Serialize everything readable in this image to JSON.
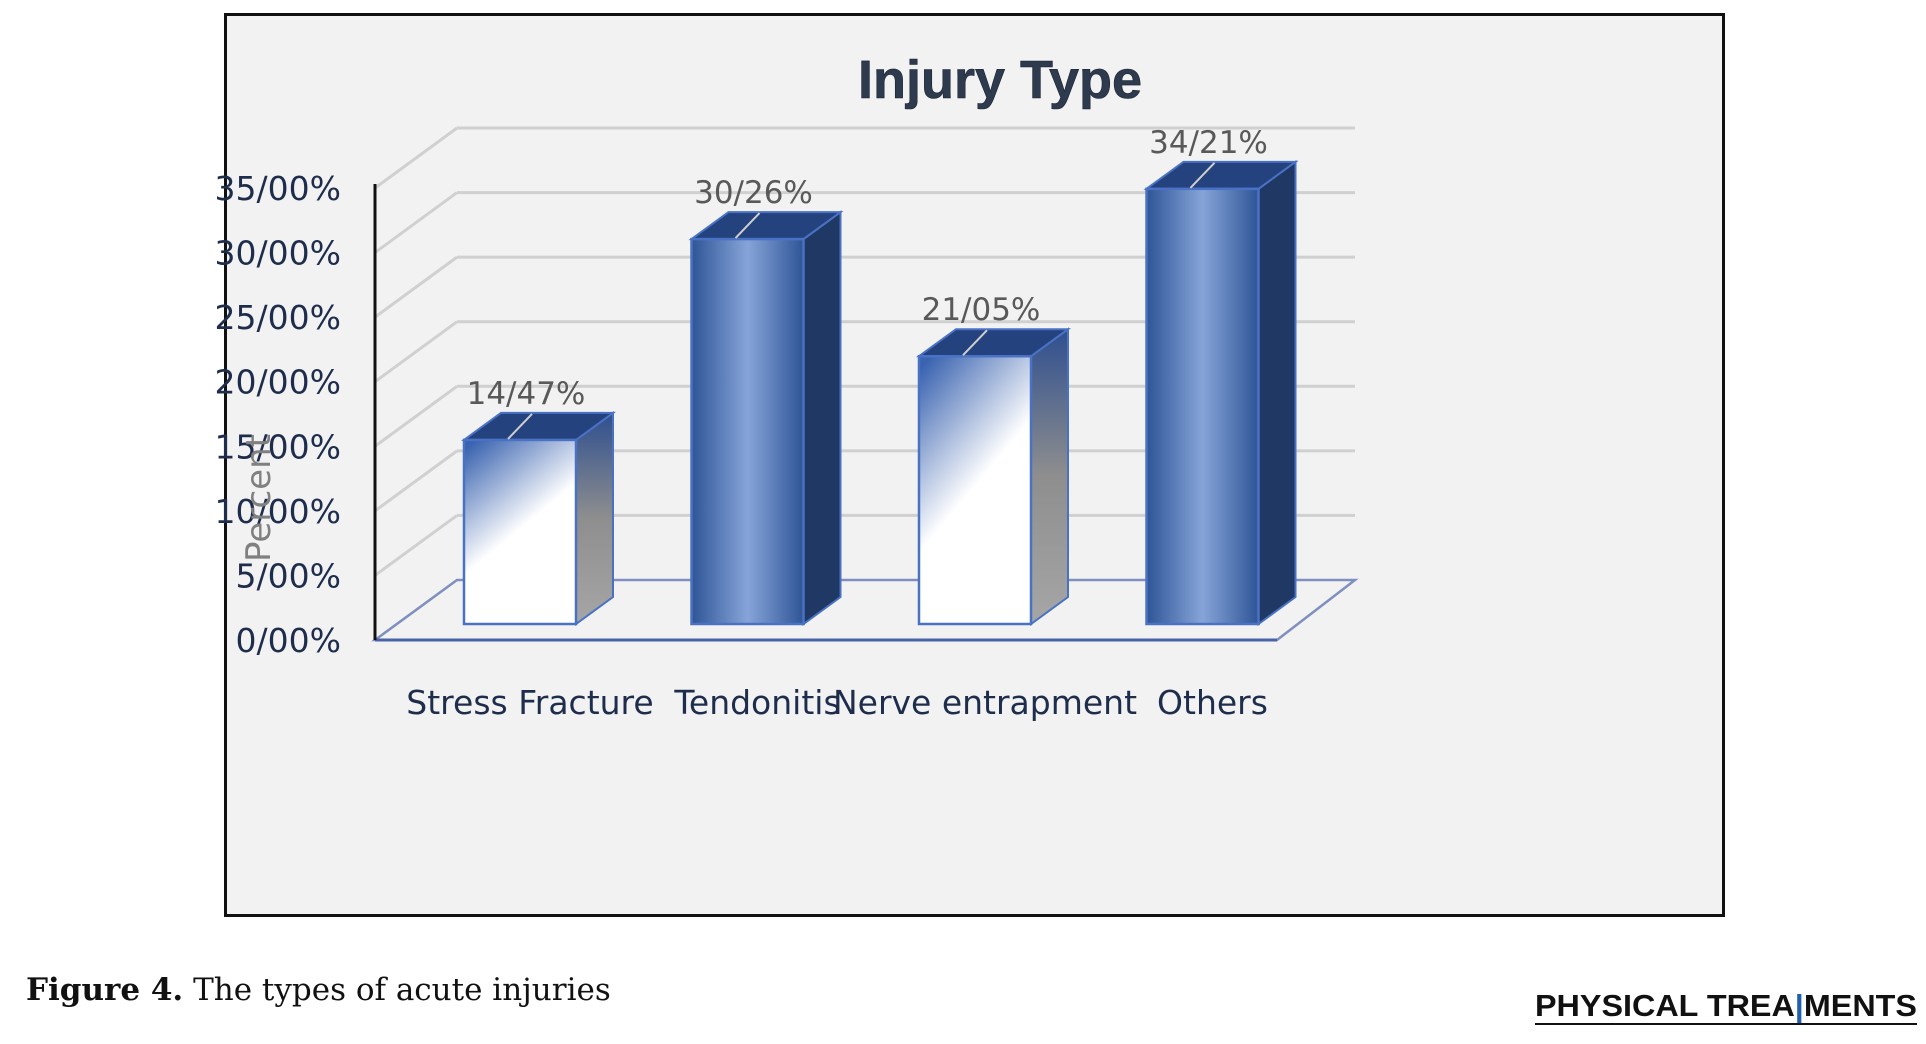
{
  "chart_data": {
    "type": "bar",
    "style": "3d-column",
    "title": "Injury Type",
    "ylabel": "Percent",
    "xlabel": "",
    "categories": [
      "Stress Fracture",
      "Tendonitis",
      "Nerve entrapment",
      "Others"
    ],
    "values": [
      14.47,
      30.26,
      21.05,
      34.21
    ],
    "data_labels": [
      "14/47%",
      "30/26%",
      "21/05%",
      "34/21%"
    ],
    "ylim": [
      0,
      35
    ],
    "yticks": [
      0,
      5,
      10,
      15,
      20,
      25,
      30,
      35
    ],
    "ytick_labels": [
      "0/00%",
      "5/00%",
      "10/00%",
      "15/00%",
      "20/00%",
      "25/00%",
      "30/00%",
      "35/00%"
    ],
    "grid": true,
    "legend": "none",
    "bar_fill": [
      "gradient-light",
      "solid",
      "gradient-light",
      "solid"
    ],
    "colors": {
      "bar_dark": "#2f5597",
      "bar_mid": "#4472c4",
      "bar_side": "#1f3864",
      "bar_light": "#ffffff",
      "side_gray": "#9a9a9a",
      "grid": "#d0d0d0",
      "title": "#2e3b4e",
      "tick_text": "#1f2d4d",
      "axis_label": "#808080",
      "data_label": "#595959"
    }
  },
  "caption": {
    "label": "Figure 4.",
    "text": " The types of acute injuries"
  },
  "brand": {
    "part1": "PHYSICAL TREA",
    "part2": "MENTS"
  }
}
